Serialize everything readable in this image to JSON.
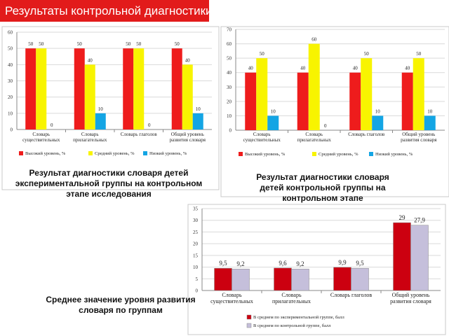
{
  "slide": {
    "title": "Результаты контрольной диагностики"
  },
  "captions": {
    "experimental": "Результат диагностики словаря детей экспериментальной группы на контрольном этапе исследования",
    "control": "Результат диагностики словаря детей контрольной группы на контрольном этапе",
    "average": "Среднее значение уровня развития словаря по группам"
  },
  "chart_data": [
    {
      "type": "bar",
      "ylim": [
        0,
        60
      ],
      "yticks": [
        "0",
        "10",
        "20",
        "30",
        "40",
        "50",
        "60"
      ],
      "categories": [
        [
          "Словарь",
          "существительных"
        ],
        [
          "Словарь",
          "прилагательных"
        ],
        [
          "Словарь глаголов"
        ],
        [
          "Общий уровень",
          "развития словаря"
        ]
      ],
      "series": [
        {
          "name": "Высокий уровень, %",
          "color": "#ee1c1c",
          "values": [
            50,
            50,
            50,
            50
          ],
          "labels": [
            "50",
            "50",
            "50",
            "50"
          ]
        },
        {
          "name": "Средний уровень, %",
          "color": "#f8f400",
          "values": [
            50,
            40,
            50,
            40
          ],
          "labels": [
            "50",
            "40",
            "50",
            "40"
          ]
        },
        {
          "name": "Низкий уровень, %",
          "color": "#14a5e4",
          "values": [
            0,
            10,
            0,
            10
          ],
          "labels": [
            "0",
            "10",
            "0",
            "10"
          ]
        }
      ]
    },
    {
      "type": "bar",
      "ylim": [
        0,
        70
      ],
      "yticks": [
        "0",
        "10",
        "20",
        "30",
        "40",
        "50",
        "60",
        "70"
      ],
      "categories": [
        [
          "Словарь",
          "существительных"
        ],
        [
          "Словарь",
          "прилагательных"
        ],
        [
          "Словарь глаголов"
        ],
        [
          "Общий уровень",
          "развития словаря"
        ]
      ],
      "series": [
        {
          "name": "Высокий уровень, %",
          "color": "#ee1c1c",
          "values": [
            40,
            40,
            40,
            40
          ],
          "labels": [
            "40",
            "40",
            "40",
            "40"
          ]
        },
        {
          "name": "Средний уровень, %",
          "color": "#f8f400",
          "values": [
            50,
            60,
            50,
            50
          ],
          "labels": [
            "50",
            "60",
            "50",
            "50"
          ]
        },
        {
          "name": "Низкий уровень, %",
          "color": "#14a5e4",
          "values": [
            10,
            0,
            10,
            10
          ],
          "labels": [
            "10",
            "0",
            "10",
            "10"
          ]
        }
      ]
    },
    {
      "type": "bar",
      "ylim": [
        0,
        35
      ],
      "yticks": [
        "0",
        "5",
        "10",
        "15",
        "20",
        "25",
        "30",
        "35"
      ],
      "categories": [
        [
          "Словарь",
          "существительных"
        ],
        [
          "Словарь",
          "прилагательных"
        ],
        [
          "Словарь глаголов"
        ],
        [
          "Общий уровень",
          "развития словаря"
        ]
      ],
      "series": [
        {
          "name": "В среднем по экспериментальной группе, балл",
          "color": "#cc0010",
          "values": [
            9.5,
            9.6,
            9.9,
            29
          ],
          "labels": [
            "9,5",
            "9,6",
            "9,9",
            "29"
          ]
        },
        {
          "name": "В среднем по контрольной группе, балл",
          "color": "#c5bfdb",
          "values": [
            9.2,
            9.2,
            9.5,
            27.9
          ],
          "labels": [
            "9,2",
            "9,2",
            "9,5",
            "27,9"
          ]
        }
      ]
    }
  ]
}
